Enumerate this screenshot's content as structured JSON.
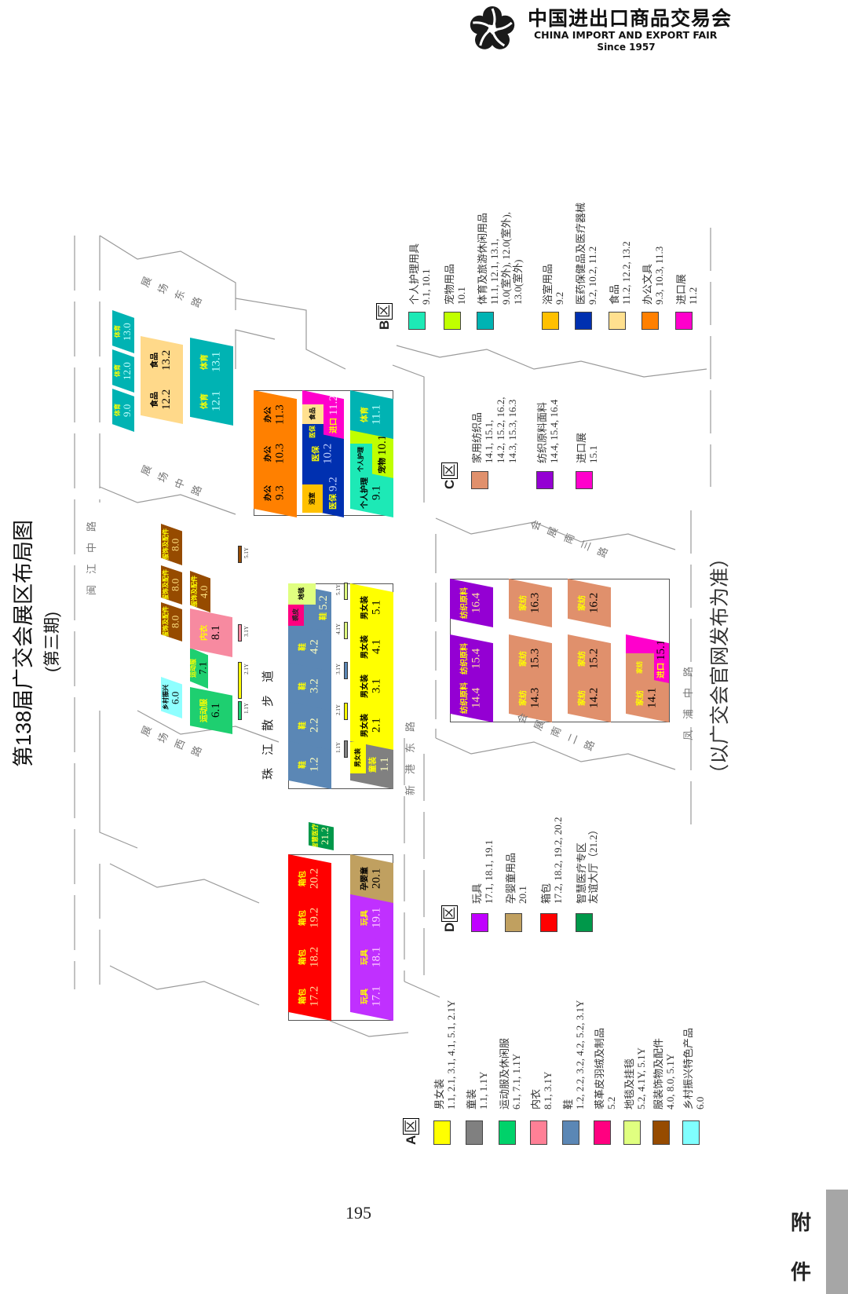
{
  "header": {
    "logo_cn": "中国进出口商品交易会",
    "logo_en": "CHINA IMPORT AND EXPORT FAIR",
    "logo_since": "Since 1957"
  },
  "title": "第138届广交会展区布局图",
  "subtitle": "(第三期)",
  "footnote": "（以广交会官网发布为准）",
  "page_number": "195",
  "side_tab": {
    "label_1": "附",
    "label_2": "件",
    "color": "#a6a6a6"
  },
  "roads": [
    {
      "label": "闽江中路"
    },
    {
      "label": "展场西路"
    },
    {
      "label": "展场中路"
    },
    {
      "label": "展场东路"
    },
    {
      "label": "珠江散步道"
    },
    {
      "label": "新港东路"
    },
    {
      "label": "会展南二路"
    },
    {
      "label": "会展南三路"
    },
    {
      "label": "凤浦中路"
    }
  ],
  "map": {
    "halls": [
      {
        "id": "1.2",
        "label": "鞋",
        "color": "#5b87b5",
        "fg": "#ffff00",
        "nc": "#ffffc0"
      },
      {
        "id": "2.2",
        "label": "鞋",
        "color": "#5b87b5",
        "fg": "#ffff00",
        "nc": "#ffffc0"
      },
      {
        "id": "3.2",
        "label": "鞋",
        "color": "#5b87b5",
        "fg": "#ffff00",
        "nc": "#ffffc0"
      },
      {
        "id": "4.2",
        "label": "鞋",
        "color": "#5b87b5",
        "fg": "#ffff00",
        "nc": "#ffffc0"
      },
      {
        "id": "5.2",
        "label": "鞋",
        "color": "#5b87b5",
        "fg": "#ffff00",
        "nc": "#ffffc0"
      },
      {
        "id": "",
        "key": "carpet",
        "label": "地毯",
        "color": "#e0ff80",
        "fg": "#000000",
        "nc": "#000000"
      },
      {
        "id": "",
        "key": "fur",
        "label": "裘皮",
        "color": "#ff0080",
        "fg": "#222222",
        "nc": "#000000"
      },
      {
        "id": "1.1",
        "label": "童装",
        "color": "#808080",
        "fg": "#ffff00",
        "nc": "#ffffc0"
      },
      {
        "id": "",
        "key": "apparel-1.1",
        "label": "男女装",
        "color": "#ffff00",
        "fg": "#000000",
        "nc": "#000000"
      },
      {
        "id": "2.1",
        "label": "男女装",
        "color": "#ffff00",
        "fg": "#000000",
        "nc": "#000000"
      },
      {
        "id": "3.1",
        "label": "男女装",
        "color": "#ffff00",
        "fg": "#000000",
        "nc": "#000000"
      },
      {
        "id": "4.1",
        "label": "男女装",
        "color": "#ffff00",
        "fg": "#000000",
        "nc": "#000000"
      },
      {
        "id": "5.1",
        "label": "男女装",
        "color": "#ffff00",
        "fg": "#000000",
        "nc": "#000000"
      },
      {
        "id": "6.1",
        "label": "运动服",
        "color": "#1ecf70",
        "fg": "#ffff00",
        "nc": "#000000"
      },
      {
        "id": "7.1",
        "label": "运动服",
        "color": "#1ecf70",
        "fg": "#ffff00",
        "nc": "#000000"
      },
      {
        "id": "6.0",
        "label": "乡村振兴",
        "color": "#8fffff",
        "fg": "#000000",
        "nc": "#000000"
      },
      {
        "id": "8.1",
        "label": "内衣",
        "color": "#f78aa0",
        "fg": "#ffff00",
        "nc": "#000000"
      },
      {
        "id": "8.0",
        "label": "服饰及配件",
        "color": "#964b00",
        "fg": "#ffff00",
        "nc": "#ffe080"
      },
      {
        "id": "8.0",
        "label": "服饰及配件",
        "color": "#964b00",
        "fg": "#ffff00",
        "nc": "#ffe080"
      },
      {
        "id": "8.0",
        "label": "服饰及配件",
        "color": "#964b00",
        "fg": "#ffff00",
        "nc": "#ffe080"
      },
      {
        "id": "4.0",
        "label": "服饰及配件",
        "color": "#964b00",
        "fg": "#ffff00",
        "nc": "#ffe080"
      },
      {
        "id": "9.3",
        "label": "办公",
        "color": "#ff8000",
        "fg": "#000000",
        "nc": "#000000"
      },
      {
        "id": "10.3",
        "label": "办公",
        "color": "#ff8000",
        "fg": "#000000",
        "nc": "#000000"
      },
      {
        "id": "11.3",
        "label": "办公",
        "color": "#ff8000",
        "fg": "#000000",
        "nc": "#000000"
      },
      {
        "id": "9.2",
        "label": "医保",
        "color": "#0030b0",
        "fg": "#ffff00",
        "nc": "#c0d0ff"
      },
      {
        "id": "",
        "key": "bath-9.2",
        "label": "浴室",
        "color": "#ffc000",
        "fg": "#000000",
        "nc": "#000000"
      },
      {
        "id": "10.2",
        "label": "医保",
        "color": "#0030b0",
        "fg": "#ffff00",
        "nc": "#c0d0ff"
      },
      {
        "id": "11.2",
        "label": "进口",
        "color": "#ff00cc",
        "fg": "#ffff00",
        "nc": "#ffe0ff"
      },
      {
        "id": "",
        "key": "food-11.2",
        "label": "食品",
        "color": "#ffe08f",
        "fg": "#000000",
        "nc": "#000000"
      },
      {
        "id": "",
        "key": "med-11.2",
        "label": "医保",
        "color": "#0030b0",
        "fg": "#ffff00",
        "nc": "#ffff00"
      },
      {
        "id": "9.1",
        "label": "个人护理",
        "color": "#1de9b6",
        "fg": "#000000",
        "nc": "#000000"
      },
      {
        "id": "10.1",
        "label": "宠物",
        "color": "#c0ff00",
        "fg": "#000000",
        "nc": "#000000"
      },
      {
        "id": "",
        "key": "care-10.1",
        "label": "个人护理",
        "color": "#1de9b6",
        "fg": "#000000",
        "nc": "#000000"
      },
      {
        "id": "11.1",
        "label": "体育",
        "color": "#00b3b3",
        "fg": "#ffff00",
        "nc": "#c0ffff"
      },
      {
        "id": "9.0",
        "label": "体育",
        "color": "#00b3b3",
        "fg": "#ffff00",
        "nc": "#c0ffff"
      },
      {
        "id": "12.0",
        "label": "体育",
        "color": "#00b3b3",
        "fg": "#ffff00",
        "nc": "#c0ffff"
      },
      {
        "id": "13.0",
        "label": "体育",
        "color": "#00b3b3",
        "fg": "#ffff00",
        "nc": "#c0ffff"
      },
      {
        "id": "12.2",
        "label": "食品",
        "color": "#ffd98a",
        "fg": "#000000",
        "nc": "#000000"
      },
      {
        "id": "13.2",
        "label": "食品",
        "color": "#ffd98a",
        "fg": "#000000",
        "nc": "#000000"
      },
      {
        "id": "12.1",
        "label": "体育",
        "color": "#00b3b3",
        "fg": "#ffff00",
        "nc": "#c0ffff"
      },
      {
        "id": "13.1",
        "label": "体育",
        "color": "#00b3b3",
        "fg": "#ffff00",
        "nc": "#c0ffff"
      },
      {
        "id": "14.4",
        "label": "纺织原料",
        "color": "#9400d3",
        "fg": "#ffff00",
        "nc": "#ffe0a0"
      },
      {
        "id": "15.4",
        "label": "纺织原料",
        "color": "#9400d3",
        "fg": "#ffff00",
        "nc": "#ffe0a0"
      },
      {
        "id": "16.4",
        "label": "纺织原料",
        "color": "#9400d3",
        "fg": "#ffff00",
        "nc": "#ffe0a0"
      },
      {
        "id": "14.3",
        "label": "家纺",
        "color": "#e0906c",
        "fg": "#ffff00",
        "nc": "#000000"
      },
      {
        "id": "15.3",
        "label": "家纺",
        "color": "#e0906c",
        "fg": "#ffff00",
        "nc": "#000000"
      },
      {
        "id": "16.3",
        "label": "家纺",
        "color": "#e0906c",
        "fg": "#ffff00",
        "nc": "#000000"
      },
      {
        "id": "14.2",
        "label": "家纺",
        "color": "#e0906c",
        "fg": "#ffff00",
        "nc": "#000000"
      },
      {
        "id": "15.2",
        "label": "家纺",
        "color": "#e0906c",
        "fg": "#ffff00",
        "nc": "#000000"
      },
      {
        "id": "16.2",
        "label": "家纺",
        "color": "#e0906c",
        "fg": "#ffff00",
        "nc": "#000000"
      },
      {
        "id": "14.1",
        "label": "家纺",
        "color": "#e0906c",
        "fg": "#ffff00",
        "nc": "#000000"
      },
      {
        "id": "15.1",
        "label": "进口",
        "color": "#ff00cc",
        "fg": "#ffff00",
        "nc": "#000000"
      },
      {
        "id": "",
        "key": "textile-15.1",
        "label": "家纺",
        "color": "#e0906c",
        "fg": "#ffff00",
        "nc": "#000000"
      },
      {
        "id": "17.2",
        "label": "箱包",
        "color": "#ff0000",
        "fg": "#ffff00",
        "nc": "#ffe0a0"
      },
      {
        "id": "18.2",
        "label": "箱包",
        "color": "#ff0000",
        "fg": "#ffff00",
        "nc": "#ffe0a0"
      },
      {
        "id": "19.2",
        "label": "箱包",
        "color": "#ff0000",
        "fg": "#ffff00",
        "nc": "#ffe0a0"
      },
      {
        "id": "20.2",
        "label": "箱包",
        "color": "#ff0000",
        "fg": "#ffff00",
        "nc": "#ffe0a0"
      },
      {
        "id": "17.1",
        "label": "玩具",
        "color": "#c030ff",
        "fg": "#ffff00",
        "nc": "#ffd0ff"
      },
      {
        "id": "18.1",
        "label": "玩具",
        "color": "#c030ff",
        "fg": "#ffff00",
        "nc": "#ffd0ff"
      },
      {
        "id": "19.1",
        "label": "玩具",
        "color": "#c030ff",
        "fg": "#ffff00",
        "nc": "#ffd0ff"
      },
      {
        "id": "20.1",
        "label": "孕婴童",
        "color": "#c0a060",
        "fg": "#000000",
        "nc": "#000000"
      },
      {
        "id": "21.2",
        "label": "智慧医疗",
        "color": "#00984a",
        "fg": "#ffff00",
        "nc": "#ffffc0"
      }
    ],
    "markers": [
      {
        "label": "1.1Y",
        "color": "#808080"
      },
      {
        "label": "2.1Y",
        "color": "#ffff00"
      },
      {
        "label": "3.1Y",
        "color": "#5b87b5"
      },
      {
        "label": "4.1Y",
        "color": "#e0ff80"
      },
      {
        "label": "5.1Y",
        "color": "#e0ff80"
      },
      {
        "label": "1.1Y",
        "color": "#1ecf70"
      },
      {
        "label": "2.1Y",
        "color": "#ffff00"
      },
      {
        "label": "3.1Y",
        "color": "#f78aa0"
      },
      {
        "label": "5.1Y",
        "color": "#964b00"
      }
    ]
  },
  "legends": [
    {
      "zone": "A",
      "suffix": "区",
      "items": [
        {
          "name": "男女装",
          "lines": [
            "1.1, 2.1, 3.1, 4.1, 5.1, 2.1Y"
          ],
          "color": "#ffff00"
        },
        {
          "name": "童装",
          "lines": [
            "1.1, 1.1Y"
          ],
          "color": "#808080"
        },
        {
          "name": "运动服及休闲服",
          "lines": [
            "6.1, 7.1, 1.1Y"
          ],
          "color": "#00d26a"
        },
        {
          "name": "内衣",
          "lines": [
            "8.1, 3.1Y"
          ],
          "color": "#ff8096"
        },
        {
          "name": "鞋",
          "lines": [
            "1.2, 2.2, 3.2, 4.2, 5.2, 3.1Y"
          ],
          "color": "#5b87b5"
        },
        {
          "name": "裘革皮羽绒及制品",
          "lines": [
            "5.2"
          ],
          "color": "#ff0080"
        },
        {
          "name": "地毯及挂毯",
          "lines": [
            "5.2, 4.1Y, 5.1Y"
          ],
          "color": "#e0ff80"
        },
        {
          "name": "服装饰物及配件",
          "lines": [
            "4.0, 8.0, 5.1Y"
          ],
          "color": "#964b00"
        },
        {
          "name": "乡村振兴特色产品",
          "lines": [
            "6.0"
          ],
          "color": "#80ffff"
        }
      ]
    },
    {
      "zone": "B",
      "suffix": "区",
      "items": [
        {
          "name": "个人护理用具",
          "lines": [
            "9.1, 10.1"
          ],
          "color": "#1de9b6"
        },
        {
          "name": "宠物用品",
          "lines": [
            "10.1"
          ],
          "color": "#c0ff00"
        },
        {
          "name": "体育及旅游休闲用品",
          "lines": [
            "11.1, 12.1, 13.1,",
            "9.0(室外), 12.0(室外),",
            "13.0(室外)"
          ],
          "color": "#00b3b3"
        },
        {
          "name": "浴室用品",
          "lines": [
            "9.2"
          ],
          "color": "#ffc000"
        },
        {
          "name": "医药保健品及医疗器械",
          "lines": [
            "9.2, 10.2, 11.2"
          ],
          "color": "#0030b0"
        },
        {
          "name": "食品",
          "lines": [
            "11.2, 12.2, 13.2"
          ],
          "color": "#ffe08f"
        },
        {
          "name": "办公文具",
          "lines": [
            "9.3, 10.3, 11.3"
          ],
          "color": "#ff8000"
        },
        {
          "name": "进口展",
          "lines": [
            "11.2"
          ],
          "color": "#ff00cc"
        }
      ]
    },
    {
      "zone": "C",
      "suffix": "区",
      "items": [
        {
          "name": "家用纺织品",
          "lines": [
            "14.1, 15.1,",
            "14.2, 15.2, 16.2,",
            "14.3, 15.3, 16.3"
          ],
          "color": "#e0906c"
        },
        {
          "name": "纺织原料面料",
          "lines": [
            "14.4, 15.4, 16.4"
          ],
          "color": "#9400d3"
        },
        {
          "name": "进口展",
          "lines": [
            "15.1"
          ],
          "color": "#ff00cc"
        }
      ]
    },
    {
      "zone": "D",
      "suffix": "区",
      "items": [
        {
          "name": "玩具",
          "lines": [
            "17.1, 18.1, 19.1"
          ],
          "color": "#c000ff"
        },
        {
          "name": "孕婴童用品",
          "lines": [
            "20.1"
          ],
          "color": "#c0a060"
        },
        {
          "name": "箱包",
          "lines": [
            "17.2, 18.2, 19.2, 20.2"
          ],
          "color": "#ff0000"
        },
        {
          "name": "智慧医疗专区",
          "lines": [
            "友谊大厅（21.2）"
          ],
          "color": "#00984a"
        }
      ]
    }
  ]
}
